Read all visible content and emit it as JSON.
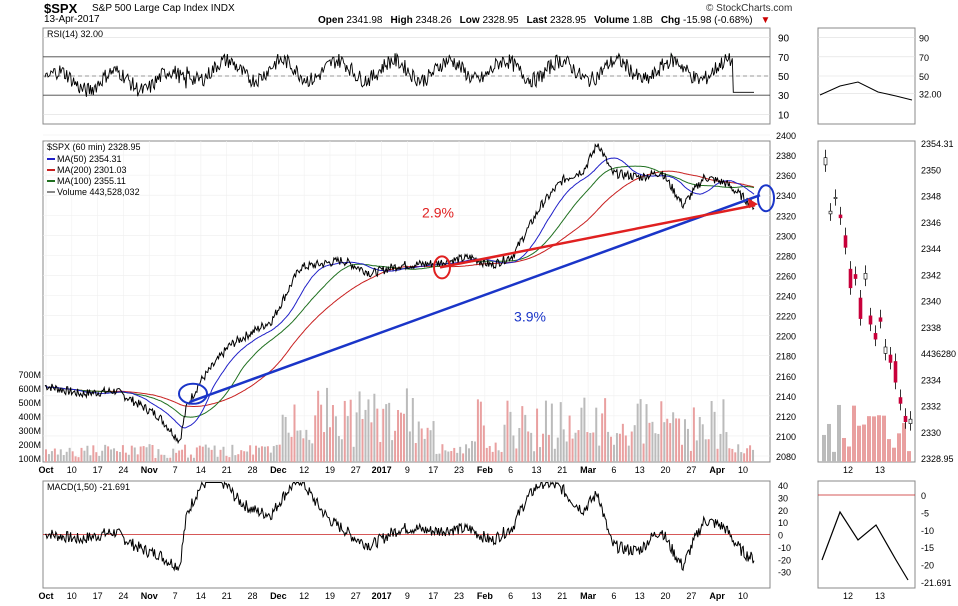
{
  "header": {
    "symbol": "$SPX",
    "name": "S&P 500 Large Cap Index  INDX",
    "date": "13-Apr-2017",
    "credit": "© StockCharts.com",
    "quote": [
      {
        "label": "Open",
        "value": "2341.98"
      },
      {
        "label": "High",
        "value": "2348.26"
      },
      {
        "label": "Low",
        "value": "2328.95"
      },
      {
        "label": "Last",
        "value": "2328.95"
      },
      {
        "label": "Volume",
        "value": "1.8B"
      },
      {
        "label": "Chg",
        "value": "-15.98 (-0.68%)"
      }
    ],
    "chg_arrow": "▼"
  },
  "rsi": {
    "label": "RSI(14) 32.00",
    "ticks": [
      "90",
      "70",
      "50",
      "30",
      "10"
    ],
    "side_ticks": [
      "90",
      "70",
      "50",
      "32.00"
    ]
  },
  "price": {
    "label": "$SPX (60 min) 2328.95",
    "legend": [
      {
        "text": "MA(50) 2354.31",
        "color": "#2020c8"
      },
      {
        "text": "MA(200) 2301.03",
        "color": "#c82020"
      },
      {
        "text": "MA(100) 2355.11",
        "color": "#207020"
      },
      {
        "text": "Volume 443,528,032",
        "color": "#888888"
      }
    ],
    "y_ticks": [
      "2400",
      "2380",
      "2360",
      "2340",
      "2320",
      "2300",
      "2280",
      "2260",
      "2240",
      "2220",
      "2200",
      "2180",
      "2160",
      "2140",
      "2120",
      "2100",
      "2080"
    ],
    "volume_ticks": [
      "700M",
      "600M",
      "500M",
      "400M",
      "300M",
      "200M",
      "100M"
    ],
    "side_ticks": [
      "2354.31",
      "2350",
      "2348",
      "2346",
      "2344",
      "2342",
      "2340",
      "2338",
      "4436280",
      "2334",
      "2332",
      "2330",
      "2328.95"
    ],
    "annotations": {
      "red_pct": "2.9%",
      "blue_pct": "3.9%"
    }
  },
  "x_axis": {
    "labels": [
      "Oct",
      "10",
      "17",
      "24",
      "Nov",
      "7",
      "14",
      "21",
      "28",
      "Dec",
      "12",
      "19",
      "27",
      "2017",
      "9",
      "17",
      "23",
      "Feb",
      "6",
      "13",
      "21",
      "Mar",
      "6",
      "13",
      "20",
      "27",
      "Apr",
      "10"
    ],
    "side_labels": [
      "12",
      "13"
    ]
  },
  "macd": {
    "label": "MACD(1,50) -21.691",
    "ticks": [
      "40",
      "30",
      "20",
      "10",
      "0",
      "-10",
      "-20",
      "-30"
    ],
    "side_ticks": [
      "0",
      "-5",
      "-10",
      "-15",
      "-20",
      "-21.691"
    ]
  },
  "chart_data": {
    "type": "line",
    "title": "$SPX",
    "xlabel": "",
    "ylabel": "",
    "x": [
      "Oct",
      "Nov",
      "Dec",
      "2017",
      "Feb",
      "Mar",
      "Apr"
    ],
    "ylim": [
      2080,
      2400
    ],
    "series": [
      {
        "name": "$SPX (60 min)",
        "values": [
          2160,
          2140,
          2200,
          2270,
          2300,
          2380,
          2328.95
        ]
      },
      {
        "name": "MA(50)",
        "values": [
          2155,
          2145,
          2210,
          2270,
          2300,
          2360,
          2354.31
        ]
      },
      {
        "name": "MA(200)",
        "values": [
          2160,
          2150,
          2190,
          2255,
          2280,
          2340,
          2301.03
        ]
      },
      {
        "name": "MA(100)",
        "values": [
          2158,
          2148,
          2200,
          2262,
          2292,
          2355,
          2355.11
        ]
      }
    ],
    "trendlines": [
      {
        "label": "3.9%",
        "color": "#1a35c8"
      },
      {
        "label": "2.9%",
        "color": "#e02020"
      }
    ]
  }
}
